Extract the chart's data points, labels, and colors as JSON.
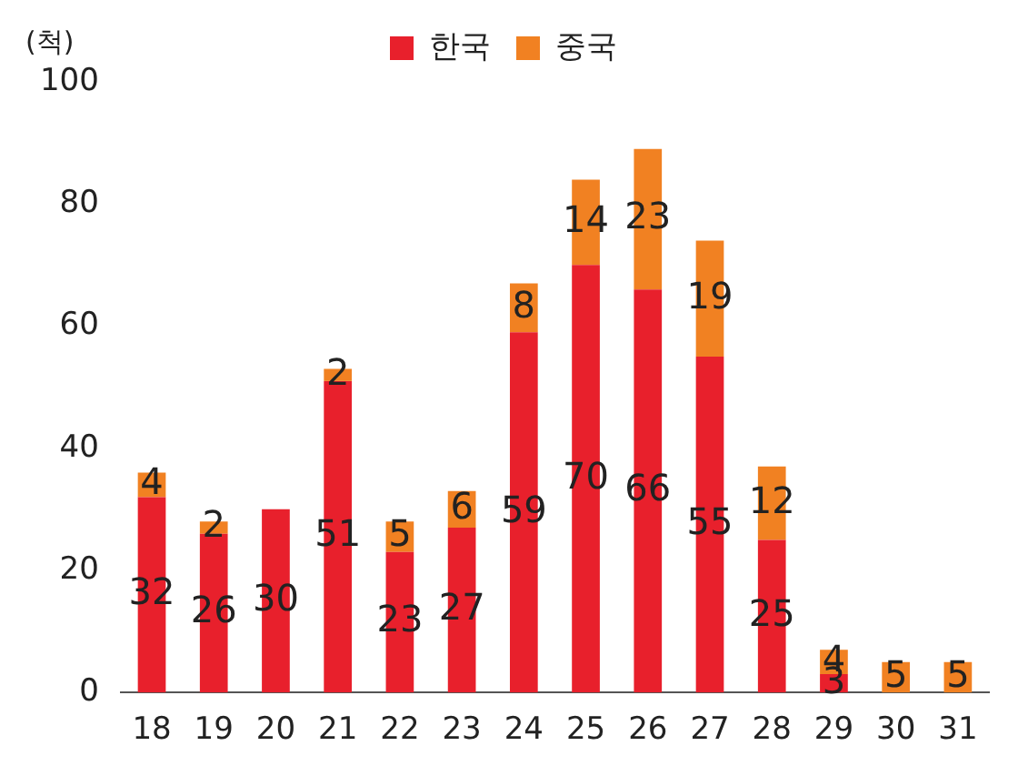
{
  "chart_data": {
    "type": "bar",
    "stacked": true,
    "ylabel": "(척)",
    "categories": [
      "18",
      "19",
      "20",
      "21",
      "22",
      "23",
      "24",
      "25",
      "26",
      "27",
      "28",
      "29",
      "30",
      "31"
    ],
    "series": [
      {
        "name": "한국",
        "color": "#e8202c",
        "values": [
          32,
          26,
          30,
          51,
          23,
          27,
          59,
          70,
          66,
          55,
          25,
          3,
          0,
          0
        ],
        "value_labels": [
          "32",
          "26",
          "30",
          "51",
          "23",
          "27",
          "59",
          "70",
          "66",
          "55",
          "25",
          "3",
          null,
          null
        ]
      },
      {
        "name": "중국",
        "color": "#f18122",
        "values": [
          4,
          2,
          0,
          2,
          5,
          6,
          8,
          14,
          23,
          19,
          12,
          4,
          5,
          5
        ],
        "value_labels": [
          "4",
          "2",
          null,
          "2",
          "5",
          "6",
          "8",
          "14",
          "23",
          "19",
          "12",
          "4",
          "5",
          "5"
        ]
      }
    ],
    "ylim": [
      0,
      100
    ],
    "yticks": [
      0,
      20,
      40,
      60,
      80,
      100
    ],
    "grid": false,
    "legend": "top"
  }
}
